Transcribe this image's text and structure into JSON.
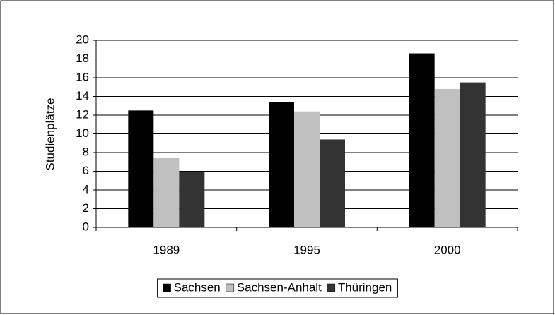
{
  "chart_data": {
    "type": "bar",
    "ylabel": "Studienplätze",
    "categories": [
      "1989",
      "1995",
      "2000"
    ],
    "series": [
      {
        "name": "Sachsen",
        "color": "#000000",
        "values": [
          12.5,
          13.4,
          18.6
        ]
      },
      {
        "name": "Sachsen-Anhalt",
        "color": "#c0c0c0",
        "values": [
          7.4,
          12.4,
          14.8
        ]
      },
      {
        "name": "Thüringen",
        "color": "#333333",
        "values": [
          5.9,
          9.4,
          15.5
        ]
      }
    ],
    "ylim": [
      0,
      20
    ],
    "yticks": [
      0,
      2,
      4,
      6,
      8,
      10,
      12,
      14,
      16,
      18,
      20
    ],
    "grid": true,
    "legend": "bottom"
  }
}
